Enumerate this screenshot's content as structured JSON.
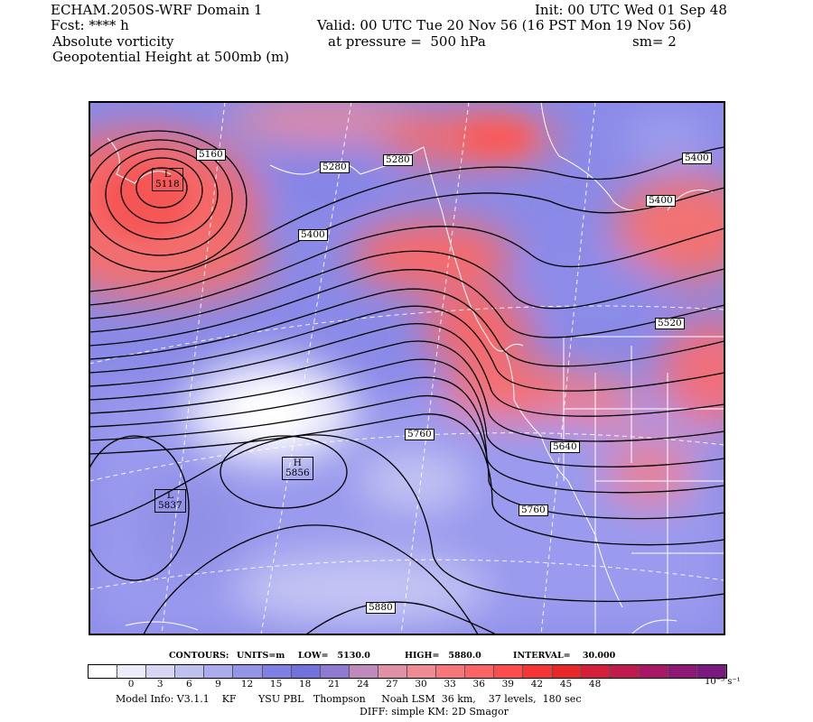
{
  "header": {
    "model": "ECHAM.2050S-WRF Domain 1",
    "fcst": "Fcst: **** h",
    "field1": "Absolute vorticity",
    "field2": "Geopotential Height at 500mb (m)",
    "init": "Init: 00 UTC Wed 01 Sep 48",
    "valid": "Valid: 00 UTC Tue 20 Nov 56 (16 PST Mon 19 Nov 56)",
    "pressure": "at pressure =  500 hPa",
    "sm": "sm= 2"
  },
  "map": {
    "contour_labels": [
      "5160",
      "5280",
      "5280",
      "5400",
      "5400",
      "5400",
      "5520",
      "5640",
      "5760",
      "5760",
      "5880"
    ],
    "highs_lows": [
      {
        "letter": "L",
        "value": "5118"
      },
      {
        "letter": "H",
        "value": "5856"
      },
      {
        "letter": "L",
        "value": "5837"
      }
    ]
  },
  "contour_info": {
    "label": "CONTOURS:",
    "units": "UNITS=m",
    "low": "LOW=   5130.0",
    "high": "HIGH=   5880.0",
    "interval": "INTERVAL=    30.000"
  },
  "colorbar": {
    "ticks": [
      "0",
      "3",
      "6",
      "9",
      "12",
      "15",
      "18",
      "21",
      "24",
      "27",
      "30",
      "33",
      "36",
      "39",
      "42",
      "45",
      "48"
    ],
    "unit": "10⁻⁵ s⁻¹",
    "colors": [
      "#ffffff",
      "#ececf8",
      "#d6d6f3",
      "#c0c0ef",
      "#aaaaec",
      "#9595e8",
      "#8080e4",
      "#7272df",
      "#8f7ad2",
      "#c089bd",
      "#e190a5",
      "#ee8a92",
      "#f7767a",
      "#fb6464",
      "#fc4c4c",
      "#f53535",
      "#e82828",
      "#d51f3a",
      "#c01a4f",
      "#a91766",
      "#8f1877",
      "#7a1a80"
    ]
  },
  "footer": {
    "line1": "Model Info: V3.1.1    KF       YSU PBL   Thompson     Noah LSM  36 km,    37 levels,  180 sec",
    "line2": "DIFF: simple KM: 2D Smagor"
  }
}
